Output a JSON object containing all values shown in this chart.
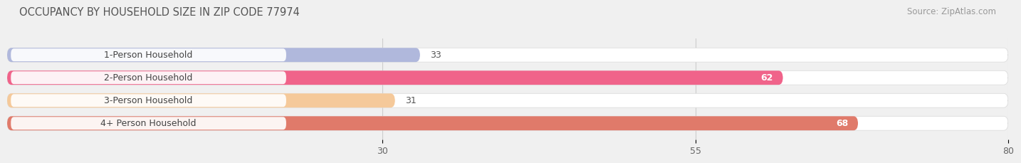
{
  "title": "OCCUPANCY BY HOUSEHOLD SIZE IN ZIP CODE 77974",
  "source": "Source: ZipAtlas.com",
  "categories": [
    "1-Person Household",
    "2-Person Household",
    "3-Person Household",
    "4+ Person Household"
  ],
  "values": [
    33,
    62,
    31,
    68
  ],
  "bar_colors": [
    "#b0b8dc",
    "#f0638a",
    "#f5c99a",
    "#e07a6a"
  ],
  "label_colors": [
    "#555555",
    "#ffffff",
    "#555555",
    "#ffffff"
  ],
  "xlim": [
    0,
    80
  ],
  "xticks": [
    30,
    55,
    80
  ],
  "background_color": "#f0f0f0",
  "bar_bg_color": "#e8e8e8",
  "bar_height": 0.62,
  "title_fontsize": 10.5,
  "source_fontsize": 8.5,
  "label_fontsize": 9,
  "tick_fontsize": 9,
  "category_fontsize": 9
}
